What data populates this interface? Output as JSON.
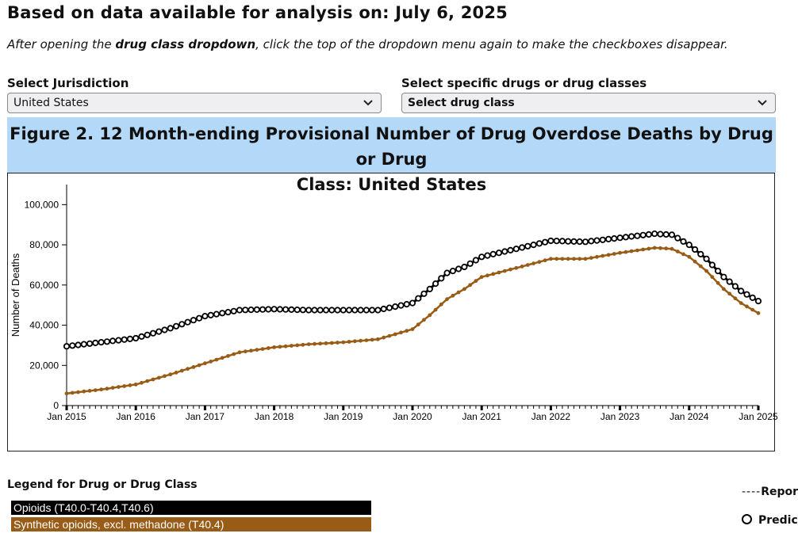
{
  "header": {
    "title": "Based on data available for analysis on: July 6, 2025",
    "note_prefix": "After opening the ",
    "note_bold": "drug class dropdown",
    "note_suffix": ", click the top of the dropdown menu again to make the checkboxes disappear."
  },
  "controls": {
    "jurisdiction_label": "Select Jurisdiction",
    "jurisdiction_value": "United States",
    "drug_label": "Select specific drugs or drug classes",
    "drug_value": "Select drug class"
  },
  "figure": {
    "title_line1": "Figure 2. 12 Month-ending Provisional Number of Drug Overdose Deaths by Drug or Drug",
    "title_line2": "Class: United States"
  },
  "legend": {
    "title": "Legend for Drug or Drug Class",
    "items": [
      {
        "label": "Opioids (T40.0-T40.4,T40.6)",
        "color": "#000000"
      },
      {
        "label": "Synthetic opioids, excl. methadone (T40.4)",
        "color": "#995c17"
      }
    ],
    "reported_label": "Repor",
    "predicted_label": "Predic"
  },
  "chart_data": {
    "type": "line",
    "title": "Figure 2. 12 Month-ending Provisional Number of Drug Overdose Deaths by Drug or Drug Class: United States",
    "xlabel": "",
    "ylabel": "Number of Deaths",
    "ylim": [
      0,
      110000
    ],
    "y_ticks": [
      "0",
      "20,000",
      "40,000",
      "60,000",
      "80,000",
      "100,000"
    ],
    "y_tick_values": [
      0,
      20000,
      40000,
      60000,
      80000,
      100000
    ],
    "x_ticks": [
      "Jan 2015",
      "Jan 2016",
      "Jan 2017",
      "Jan 2018",
      "Jan 2019",
      "Jan 2020",
      "Jan 2021",
      "Jan 2022",
      "Jan 2023",
      "Jan 2024",
      "Jan 2025"
    ],
    "x_range": [
      2015.0,
      2025.0
    ],
    "series": [
      {
        "name": "Opioids (T40.0-T40.4,T40.6)",
        "color": "#000000",
        "x": [
          2015.0,
          2015.5,
          2016.0,
          2016.5,
          2017.0,
          2017.5,
          2018.0,
          2018.5,
          2019.0,
          2019.5,
          2020.0,
          2020.25,
          2020.5,
          2020.75,
          2021.0,
          2021.5,
          2022.0,
          2022.5,
          2023.0,
          2023.5,
          2023.75,
          2024.0,
          2024.25,
          2024.5,
          2024.75,
          2025.0
        ],
        "values": [
          29500,
          31500,
          33500,
          38500,
          44500,
          47500,
          48000,
          47500,
          47500,
          47500,
          51000,
          58000,
          66000,
          69000,
          74000,
          78000,
          82000,
          81500,
          83500,
          85500,
          85000,
          80000,
          73000,
          64000,
          57000,
          52000
        ]
      },
      {
        "name": "Synthetic opioids, excl. methadone (T40.4)",
        "color": "#995c17",
        "x": [
          2015.0,
          2015.5,
          2016.0,
          2016.5,
          2017.0,
          2017.5,
          2018.0,
          2018.5,
          2019.0,
          2019.5,
          2020.0,
          2020.25,
          2020.5,
          2020.75,
          2021.0,
          2021.5,
          2022.0,
          2022.5,
          2023.0,
          2023.5,
          2023.75,
          2024.0,
          2024.25,
          2024.5,
          2024.75,
          2025.0
        ],
        "values": [
          6000,
          8000,
          10500,
          15500,
          21000,
          26500,
          29000,
          30500,
          31500,
          33000,
          38000,
          45000,
          53000,
          58000,
          64000,
          68500,
          73000,
          73000,
          76000,
          78500,
          78000,
          74000,
          67000,
          58000,
          51000,
          46000
        ]
      }
    ]
  }
}
